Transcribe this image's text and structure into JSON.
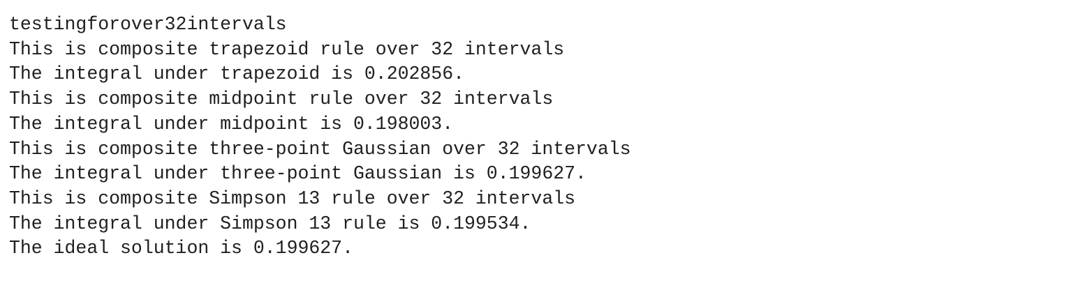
{
  "output": {
    "lines": [
      "testingforover32intervals",
      "This is composite trapezoid rule over 32 intervals",
      "The integral under trapezoid is 0.202856.",
      "This is composite midpoint rule over 32 intervals",
      "The integral under midpoint is 0.198003.",
      "This is composite three-point Gaussian over 32 intervals",
      "The integral under three-point Gaussian is 0.199627.",
      "This is composite Simpson 13 rule over 32 intervals",
      "The integral under Simpson 13 rule is 0.199534.",
      "The ideal solution is 0.199627."
    ]
  },
  "colors": {
    "background": "#ffffff",
    "text": "#1f1f1f"
  }
}
